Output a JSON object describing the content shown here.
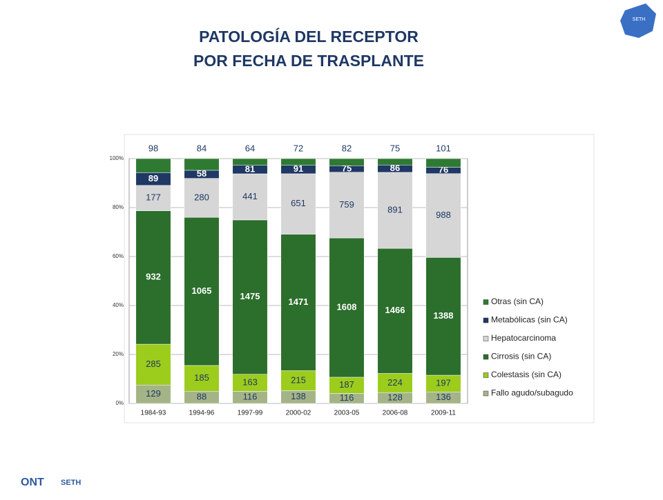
{
  "chart_data": {
    "type": "stacked_bar_percent",
    "title": [
      "PATOLOGÍA DEL RECEPTOR",
      "POR FECHA DE TRASPLANTE"
    ],
    "categories": [
      "1984-93",
      "1994-96",
      "1997-99",
      "2000-02",
      "2003-05",
      "2006-08",
      "2009-11"
    ],
    "series": [
      {
        "name": "Fallo agudo/subagudo",
        "color": "#a4b487",
        "label_color": "#1f3864",
        "values": [
          129,
          88,
          116,
          138,
          116,
          128,
          136
        ]
      },
      {
        "name": "Colestasis (sin CA)",
        "color": "#9ccc1c",
        "label_color": "#1f3864",
        "values": [
          285,
          185,
          163,
          215,
          187,
          224,
          197
        ]
      },
      {
        "name": "Cirrosis (sin CA)",
        "color": "#2c6e2c",
        "label_color": "#ffffff",
        "values": [
          932,
          1065,
          1475,
          1471,
          1608,
          1466,
          1388
        ]
      },
      {
        "name": "Hepatocarcinoma",
        "color": "#d6d6d6",
        "label_color": "#1f3864",
        "values": [
          177,
          280,
          441,
          651,
          759,
          891,
          988
        ]
      },
      {
        "name": "Metabólicas (sin CA)",
        "color": "#1f3864",
        "label_color": "#ffffff",
        "values": [
          89,
          58,
          81,
          91,
          75,
          86,
          76
        ]
      },
      {
        "name": "Otras (sin CA)",
        "color": "#2f7a33",
        "label_color": "#1f3864",
        "values": [
          98,
          84,
          64,
          72,
          82,
          75,
          101
        ]
      }
    ],
    "ylim": [
      0,
      100
    ],
    "yticks": [
      {
        "value": 0,
        "label": "0%"
      },
      {
        "value": 20,
        "label": "20%"
      },
      {
        "value": 40,
        "label": "40%"
      },
      {
        "value": 60,
        "label": "60%"
      },
      {
        "value": 80,
        "label": "80%"
      },
      {
        "value": 100,
        "label": "100%"
      }
    ],
    "grid": true,
    "legend": "right"
  },
  "logos": [
    "ONT",
    "SETH"
  ],
  "map_label": "SETH"
}
